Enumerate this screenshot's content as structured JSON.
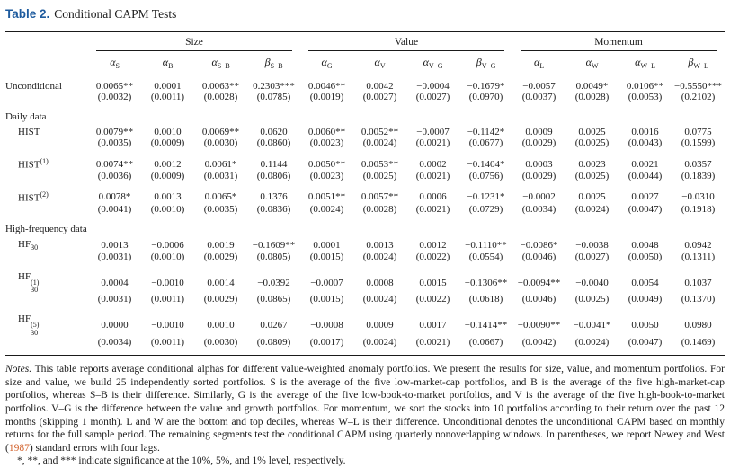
{
  "colors": {
    "title_blue": "#1e5b9e",
    "citation_orange": "#d2602a",
    "rule_color": "#1a1a1a",
    "text_color": "#1b1b1b"
  },
  "table": {
    "title_label": "Table 2.",
    "title_text": "Conditional CAPM Tests",
    "groups": [
      {
        "label": "Size"
      },
      {
        "label": "Value"
      },
      {
        "label": "Momentum"
      }
    ],
    "columns": [
      {
        "letter": "α",
        "sub": "S"
      },
      {
        "letter": "α",
        "sub": "B"
      },
      {
        "letter": "α",
        "sub": "S−B"
      },
      {
        "letter": "β",
        "sub": "S−B"
      },
      {
        "letter": "α",
        "sub": "G"
      },
      {
        "letter": "α",
        "sub": "V"
      },
      {
        "letter": "α",
        "sub": "V−G"
      },
      {
        "letter": "β",
        "sub": "V−G"
      },
      {
        "letter": "α",
        "sub": "L"
      },
      {
        "letter": "α",
        "sub": "W"
      },
      {
        "letter": "α",
        "sub": "W−L"
      },
      {
        "letter": "β",
        "sub": "W−L"
      }
    ],
    "rows": [
      {
        "type": "data",
        "label": "Unconditional",
        "indent": false,
        "values": [
          "0.0065**",
          "0.0001",
          "0.0063**",
          "0.2303***",
          "0.0046**",
          "0.0042",
          "−0.0004",
          "−0.1679*",
          "−0.0057",
          "0.0049*",
          "0.0106**",
          "−0.5550***"
        ],
        "se": [
          "(0.0032)",
          "(0.0011)",
          "(0.0028)",
          "(0.0785)",
          "(0.0019)",
          "(0.0027)",
          "(0.0027)",
          "(0.0970)",
          "(0.0037)",
          "(0.0028)",
          "(0.0053)",
          "(0.2102)"
        ]
      },
      {
        "type": "section",
        "label": "Daily data"
      },
      {
        "type": "data",
        "label": "HIST",
        "indent": true,
        "values": [
          "0.0079**",
          "0.0010",
          "0.0069**",
          "0.0620",
          "0.0060**",
          "0.0052**",
          "−0.0007",
          "−0.1142*",
          "0.0009",
          "0.0025",
          "0.0016",
          "0.0775"
        ],
        "se": [
          "(0.0035)",
          "(0.0009)",
          "(0.0030)",
          "(0.0860)",
          "(0.0023)",
          "(0.0024)",
          "(0.0021)",
          "(0.0677)",
          "(0.0029)",
          "(0.0025)",
          "(0.0043)",
          "(0.1599)"
        ]
      },
      {
        "type": "data",
        "label": "HIST",
        "sup": "(1)",
        "indent": true,
        "values": [
          "0.0074**",
          "0.0012",
          "0.0061*",
          "0.1144",
          "0.0050**",
          "0.0053**",
          "0.0002",
          "−0.1404*",
          "0.0003",
          "0.0023",
          "0.0021",
          "0.0357"
        ],
        "se": [
          "(0.0036)",
          "(0.0009)",
          "(0.0031)",
          "(0.0806)",
          "(0.0023)",
          "(0.0025)",
          "(0.0021)",
          "(0.0756)",
          "(0.0029)",
          "(0.0025)",
          "(0.0044)",
          "(0.1839)"
        ]
      },
      {
        "type": "data",
        "label": "HIST",
        "sup": "(2)",
        "indent": true,
        "values": [
          "0.0078*",
          "0.0013",
          "0.0065*",
          "0.1376",
          "0.0051**",
          "0.0057**",
          "0.0006",
          "−0.1231*",
          "−0.0002",
          "0.0025",
          "0.0027",
          "−0.0310"
        ],
        "se": [
          "(0.0041)",
          "(0.0010)",
          "(0.0035)",
          "(0.0836)",
          "(0.0024)",
          "(0.0028)",
          "(0.0021)",
          "(0.0729)",
          "(0.0034)",
          "(0.0024)",
          "(0.0047)",
          "(0.1918)"
        ]
      },
      {
        "type": "section",
        "label": "High-frequency data"
      },
      {
        "type": "data",
        "label": "HF",
        "subscript": "30",
        "indent": true,
        "values": [
          "0.0013",
          "−0.0006",
          "0.0019",
          "−0.1609**",
          "0.0001",
          "0.0013",
          "0.0012",
          "−0.1110**",
          "−0.0086*",
          "−0.0038",
          "0.0048",
          "0.0942"
        ],
        "se": [
          "(0.0031)",
          "(0.0010)",
          "(0.0029)",
          "(0.0805)",
          "(0.0015)",
          "(0.0024)",
          "(0.0022)",
          "(0.0554)",
          "(0.0046)",
          "(0.0027)",
          "(0.0050)",
          "(0.1311)"
        ]
      },
      {
        "type": "data",
        "label": "HF",
        "subscript": "30",
        "sup": "(1)",
        "indent": true,
        "values": [
          "0.0004",
          "−0.0010",
          "0.0014",
          "−0.0392",
          "−0.0007",
          "0.0008",
          "0.0015",
          "−0.1306**",
          "−0.0094**",
          "−0.0040",
          "0.0054",
          "0.1037"
        ],
        "se": [
          "(0.0031)",
          "(0.0011)",
          "(0.0029)",
          "(0.0865)",
          "(0.0015)",
          "(0.0024)",
          "(0.0022)",
          "(0.0618)",
          "(0.0046)",
          "(0.0025)",
          "(0.0049)",
          "(0.1370)"
        ]
      },
      {
        "type": "data",
        "label": "HF",
        "subscript": "30",
        "sup": "(5)",
        "indent": true,
        "values": [
          "0.0000",
          "−0.0010",
          "0.0010",
          "0.0267",
          "−0.0008",
          "0.0009",
          "0.0017",
          "−0.1414**",
          "−0.0090**",
          "−0.0041*",
          "0.0050",
          "0.0980"
        ],
        "se": [
          "(0.0034)",
          "(0.0011)",
          "(0.0030)",
          "(0.0809)",
          "(0.0017)",
          "(0.0024)",
          "(0.0021)",
          "(0.0667)",
          "(0.0042)",
          "(0.0024)",
          "(0.0047)",
          "(0.1469)"
        ]
      }
    ]
  },
  "notes": {
    "label": "Notes.",
    "body_before_citation": "This table reports average conditional alphas for different value-weighted anomaly portfolios. We present the results for size, value, and momentum portfolios. For size and value, we build 25 independently sorted portfolios. S is the average of the five low-market-cap portfolios, and B is the average of the five high-market-cap portfolios, whereas S–B is their difference. Similarly, G is the average of the five low-book-to-market portfolios, and V is the average of the five high-book-to-market portfolios. V–G is the difference between the value and growth portfolios. For momentum, we sort the stocks into 10 portfolios according to their return over the past 12 months (skipping 1 month). L and W are the bottom and top deciles, whereas W–L is their difference. Unconditional denotes the unconditional CAPM based on monthly returns for the full sample period. The remaining segments test the conditional CAPM using quarterly nonoverlapping windows. In parentheses, we report Newey and West (",
    "citation": "1987",
    "body_after_citation": ") standard errors with four lags.",
    "significance": "*, **, and *** indicate significance at the 10%, 5%, and 1% level, respectively."
  }
}
